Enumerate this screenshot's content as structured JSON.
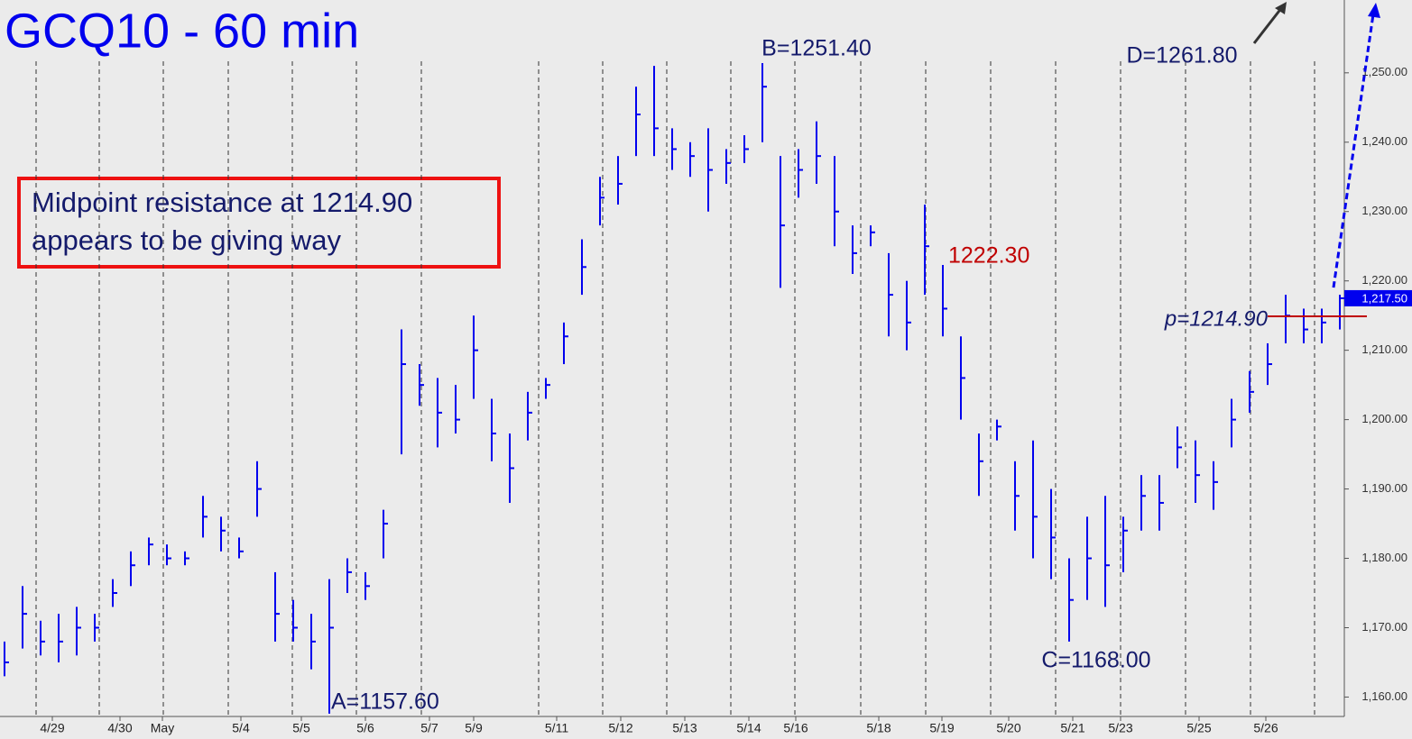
{
  "chart_data": {
    "type": "hlc",
    "title": "GCQ10 - 60 min",
    "note": [
      "Midpoint resistance at 1214.90",
      "appears to be giving way"
    ],
    "color": "#0000ee",
    "x": [
      0,
      1,
      2,
      3,
      4,
      5,
      6,
      7,
      8,
      9,
      10,
      11,
      12,
      13,
      14,
      15,
      16,
      17,
      18,
      19,
      20,
      21,
      22,
      23,
      24,
      25,
      26,
      27,
      28,
      29,
      30,
      31,
      32,
      33,
      34,
      35,
      36,
      37,
      38,
      39,
      40,
      41,
      42,
      43,
      44,
      45,
      46,
      47,
      48,
      49,
      50,
      51,
      52,
      53,
      54,
      55,
      56,
      57,
      58,
      59,
      60,
      61,
      62,
      63,
      64,
      65,
      66,
      67,
      68,
      69,
      70,
      71,
      72,
      73,
      74
    ],
    "high": [
      1168,
      1176,
      1171,
      1172,
      1173,
      1172,
      1177,
      1181,
      1183,
      1182,
      1181,
      1189,
      1186,
      1183,
      1194,
      1178,
      1174,
      1172,
      1177,
      1180,
      1178,
      1187,
      1213,
      1208,
      1206,
      1205,
      1215,
      1203,
      1198,
      1204,
      1206,
      1214,
      1226,
      1235,
      1238,
      1248,
      1251,
      1242,
      1240,
      1242,
      1239,
      1241,
      1251.4,
      1238,
      1239,
      1243,
      1238,
      1228,
      1228,
      1224,
      1220,
      1231,
      1222.3,
      1212,
      1198,
      1200,
      1194,
      1197,
      1190,
      1180,
      1186,
      1189,
      1186,
      1192,
      1192,
      1199,
      1197,
      1194,
      1203,
      1207,
      1211,
      1218,
      1216,
      1216,
      1218
    ],
    "low": [
      1163,
      1167,
      1166,
      1165,
      1166,
      1168,
      1173,
      1176,
      1179,
      1179,
      1179,
      1183,
      1181,
      1180,
      1186,
      1168,
      1168,
      1164,
      1157.6,
      1175,
      1174,
      1180,
      1195,
      1202,
      1196,
      1198,
      1203,
      1194,
      1188,
      1197,
      1203,
      1208,
      1218,
      1228,
      1231,
      1238,
      1238,
      1236,
      1235,
      1230,
      1234,
      1237,
      1240,
      1219,
      1232,
      1234,
      1225,
      1221,
      1225,
      1212,
      1210,
      1218,
      1212,
      1200,
      1189,
      1197,
      1184,
      1180,
      1177,
      1168,
      1174,
      1173,
      1178,
      1184,
      1184,
      1193,
      1188,
      1187,
      1196,
      1201,
      1205,
      1211,
      1211,
      1211,
      1213
    ],
    "close": [
      1165,
      1172,
      1168,
      1168,
      1170,
      1170,
      1175,
      1179,
      1182,
      1180,
      1180,
      1186,
      1184,
      1181,
      1190,
      1172,
      1170,
      1168,
      1170,
      1178,
      1176,
      1185,
      1208,
      1205,
      1201,
      1200,
      1210,
      1198,
      1193,
      1201,
      1205,
      1212,
      1222,
      1232,
      1234,
      1244,
      1242,
      1239,
      1238,
      1236,
      1237,
      1239,
      1248,
      1228,
      1236,
      1238,
      1230,
      1224,
      1227,
      1218,
      1214,
      1225,
      1216,
      1206,
      1194,
      1199,
      1189,
      1186,
      1183,
      1174,
      1180,
      1179,
      1184,
      1189,
      1188,
      1196,
      1192,
      1191,
      1200,
      1204,
      1208,
      1215,
      1213,
      1214,
      1217.5
    ],
    "last": {
      "value": 1217.5,
      "label": "1,217.50"
    },
    "xlim": [
      -0.25,
      74.25
    ],
    "ylim": [
      1157.2,
      1260.5
    ],
    "xticks": [
      {
        "value": 2.65,
        "label": "4/29"
      },
      {
        "value": 6.4,
        "label": "4/30"
      },
      {
        "value": 8.75,
        "label": "May"
      },
      {
        "value": 13.1,
        "label": "5/4"
      },
      {
        "value": 16.45,
        "label": "5/5"
      },
      {
        "value": 20,
        "label": "5/6"
      },
      {
        "value": 23.55,
        "label": "5/7"
      },
      {
        "value": 26,
        "label": "5/9"
      },
      {
        "value": 30.6,
        "label": "5/11"
      },
      {
        "value": 34.15,
        "label": "5/12"
      },
      {
        "value": 37.7,
        "label": "5/13"
      },
      {
        "value": 41.25,
        "label": "5/14"
      },
      {
        "value": 43.85,
        "label": "5/16"
      },
      {
        "value": 48.45,
        "label": "5/18"
      },
      {
        "value": 51.95,
        "label": "5/19"
      },
      {
        "value": 55.65,
        "label": "5/20"
      },
      {
        "value": 59.2,
        "label": "5/21"
      },
      {
        "value": 61.85,
        "label": "5/23"
      },
      {
        "value": 66.2,
        "label": "5/25"
      },
      {
        "value": 69.9,
        "label": "5/26"
      }
    ],
    "xgrid": [
      1.75,
      5.25,
      8.8,
      12.4,
      15.95,
      19.5,
      23.1,
      29.6,
      33.15,
      36.7,
      40.25,
      43.8,
      47.45,
      51.05,
      54.65,
      58.25,
      61.85,
      65.45,
      69.05,
      72.6
    ],
    "yticks": [
      {
        "value": 1160,
        "label": "1,160.00"
      },
      {
        "value": 1170,
        "label": "1,170.00"
      },
      {
        "value": 1180,
        "label": "1,180.00"
      },
      {
        "value": 1190,
        "label": "1,190.00"
      },
      {
        "value": 1200,
        "label": "1,200.00"
      },
      {
        "value": 1210,
        "label": "1,210.00"
      },
      {
        "value": 1220,
        "label": "1,220.00"
      },
      {
        "value": 1230,
        "label": "1,230.00"
      },
      {
        "value": 1240,
        "label": "1,240.00"
      },
      {
        "value": 1250,
        "label": "1,250.00"
      }
    ],
    "annotations": [
      {
        "label": "A=1157.60",
        "x": 18,
        "value": 1157.6,
        "color": "#141a6b"
      },
      {
        "label": "B=1251.40",
        "x": 42,
        "value": 1251.4,
        "color": "#141a6b"
      },
      {
        "label": "C=1168.00",
        "x": 59,
        "value": 1168,
        "color": "#141a6b"
      },
      {
        "label": "D=1261.80",
        "x": 69.3,
        "value": 1261.8,
        "color": "#141a6b"
      },
      {
        "label": "1222.30",
        "x": 52,
        "value": 1222.3,
        "color": "#c00000"
      }
    ],
    "pivot": {
      "label": "p=1214.90",
      "value": 1214.9,
      "color": "#c00000"
    }
  }
}
